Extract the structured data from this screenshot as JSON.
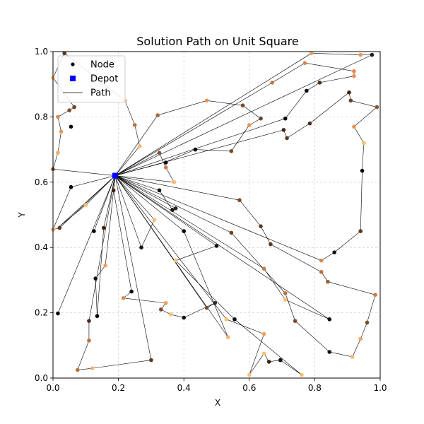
{
  "chart_data": {
    "type": "scatter",
    "title": "Solution Path on Unit Square",
    "xlabel": "X",
    "ylabel": "Y",
    "xlim": [
      0,
      1
    ],
    "ylim": [
      0,
      1
    ],
    "xticks": [
      "0.0",
      "0.2",
      "0.4",
      "0.6",
      "0.8",
      "1.0"
    ],
    "yticks": [
      "0.0",
      "0.2",
      "0.4",
      "0.6",
      "0.8",
      "1.0"
    ],
    "grid": true,
    "legend": {
      "placement": "top-left",
      "entries": [
        {
          "label": "Node",
          "marker": "circle",
          "color": "#000000"
        },
        {
          "label": "Depot",
          "marker": "square",
          "color": "#0000ff"
        },
        {
          "label": "Path",
          "marker": "line",
          "color": "#000000"
        }
      ]
    },
    "depot": {
      "x": 0.19,
      "y": 0.62,
      "color": "#0000ff"
    },
    "routes": [
      [
        [
          0.19,
          0.62
        ],
        [
          0.0,
          0.64
        ],
        [
          0.015,
          0.69
        ],
        [
          0.025,
          0.755
        ],
        [
          0.015,
          0.8
        ],
        [
          0.05,
          0.82
        ],
        [
          0.065,
          0.83
        ],
        [
          0.0,
          0.92
        ],
        [
          0.035,
          0.995
        ],
        [
          0.22,
          0.85
        ],
        [
          0.25,
          0.775
        ],
        [
          0.265,
          0.71
        ],
        [
          0.19,
          0.62
        ]
      ],
      [
        [
          0.19,
          0.62
        ],
        [
          0.32,
          0.805
        ],
        [
          0.47,
          0.85
        ],
        [
          0.58,
          0.835
        ],
        [
          0.635,
          0.795
        ],
        [
          0.6,
          0.775
        ],
        [
          0.545,
          0.695
        ],
        [
          0.435,
          0.7
        ],
        [
          0.34,
          0.66
        ],
        [
          0.19,
          0.62
        ]
      ],
      [
        [
          0.19,
          0.62
        ],
        [
          0.71,
          0.795
        ],
        [
          0.775,
          0.88
        ],
        [
          0.815,
          0.905
        ],
        [
          0.92,
          0.925
        ],
        [
          0.92,
          0.94
        ],
        [
          0.77,
          0.965
        ],
        [
          0.67,
          0.905
        ],
        [
          0.19,
          0.62
        ]
      ],
      [
        [
          0.19,
          0.62
        ],
        [
          0.79,
          0.995
        ],
        [
          0.94,
          0.99
        ],
        [
          0.975,
          0.99
        ],
        [
          0.19,
          0.62
        ]
      ],
      [
        [
          0.19,
          0.62
        ],
        [
          0.705,
          0.76
        ],
        [
          0.715,
          0.735
        ],
        [
          0.785,
          0.78
        ],
        [
          0.905,
          0.875
        ],
        [
          0.91,
          0.85
        ],
        [
          0.99,
          0.83
        ],
        [
          0.92,
          0.77
        ],
        [
          0.95,
          0.72
        ],
        [
          0.945,
          0.635
        ],
        [
          0.94,
          0.45
        ],
        [
          0.86,
          0.385
        ],
        [
          0.82,
          0.36
        ],
        [
          0.19,
          0.62
        ]
      ],
      [
        [
          0.19,
          0.62
        ],
        [
          0.325,
          0.69
        ],
        [
          0.345,
          0.645
        ],
        [
          0.37,
          0.6
        ],
        [
          0.19,
          0.62
        ]
      ],
      [
        [
          0.19,
          0.62
        ],
        [
          0.57,
          0.545
        ],
        [
          0.635,
          0.465
        ],
        [
          0.665,
          0.41
        ],
        [
          0.82,
          0.325
        ],
        [
          0.84,
          0.295
        ],
        [
          0.985,
          0.255
        ],
        [
          0.96,
          0.17
        ],
        [
          0.94,
          0.12
        ],
        [
          0.915,
          0.065
        ],
        [
          0.845,
          0.08
        ],
        [
          0.74,
          0.175
        ],
        [
          0.71,
          0.26
        ],
        [
          0.545,
          0.445
        ],
        [
          0.19,
          0.62
        ]
      ],
      [
        [
          0.19,
          0.62
        ],
        [
          0.325,
          0.575
        ],
        [
          0.365,
          0.515
        ],
        [
          0.375,
          0.52
        ],
        [
          0.19,
          0.62
        ]
      ],
      [
        [
          0.19,
          0.62
        ],
        [
          0.845,
          0.18
        ],
        [
          0.71,
          0.24
        ],
        [
          0.645,
          0.335
        ],
        [
          0.19,
          0.62
        ]
      ],
      [
        [
          0.19,
          0.62
        ],
        [
          0.53,
          0.18
        ],
        [
          0.645,
          0.135
        ],
        [
          0.6,
          0.01
        ],
        [
          0.645,
          0.075
        ],
        [
          0.66,
          0.05
        ],
        [
          0.695,
          0.055
        ],
        [
          0.76,
          0.01
        ],
        [
          0.555,
          0.18
        ],
        [
          0.375,
          0.36
        ],
        [
          0.5,
          0.405
        ],
        [
          0.19,
          0.62
        ]
      ],
      [
        [
          0.19,
          0.62
        ],
        [
          0.535,
          0.125
        ],
        [
          0.4,
          0.45
        ],
        [
          0.19,
          0.62
        ]
      ],
      [
        [
          0.19,
          0.62
        ],
        [
          0.27,
          0.4
        ],
        [
          0.31,
          0.485
        ],
        [
          0.19,
          0.62
        ]
      ],
      [
        [
          0.19,
          0.62
        ],
        [
          0.02,
          0.46
        ],
        [
          0.0,
          0.455
        ],
        [
          0.055,
          0.585
        ],
        [
          0.19,
          0.62
        ]
      ],
      [
        [
          0.19,
          0.62
        ],
        [
          0.1,
          0.53
        ],
        [
          0.02,
          0.465
        ],
        [
          0.19,
          0.62
        ]
      ],
      [
        [
          0.19,
          0.62
        ],
        [
          0.125,
          0.45
        ],
        [
          0.19,
          0.62
        ]
      ],
      [
        [
          0.19,
          0.62
        ],
        [
          0.185,
          0.575
        ],
        [
          0.24,
          0.265
        ],
        [
          0.215,
          0.245
        ],
        [
          0.345,
          0.23
        ],
        [
          0.33,
          0.21
        ],
        [
          0.36,
          0.195
        ],
        [
          0.4,
          0.185
        ],
        [
          0.495,
          0.23
        ],
        [
          0.47,
          0.215
        ],
        [
          0.19,
          0.62
        ]
      ],
      [
        [
          0.19,
          0.62
        ],
        [
          0.155,
          0.46
        ],
        [
          0.135,
          0.19
        ],
        [
          0.13,
          0.305
        ],
        [
          0.16,
          0.345
        ],
        [
          0.19,
          0.62
        ]
      ],
      [
        [
          0.19,
          0.62
        ],
        [
          0.015,
          0.198
        ],
        [
          0.19,
          0.62
        ]
      ],
      [
        [
          0.19,
          0.62
        ],
        [
          0.11,
          0.175
        ],
        [
          0.11,
          0.115
        ],
        [
          0.075,
          0.025
        ],
        [
          0.12,
          0.03
        ],
        [
          0.3,
          0.055
        ],
        [
          0.19,
          0.62
        ]
      ]
    ],
    "nodes": [
      {
        "x": 0.035,
        "y": 0.995,
        "color": "#5a3a20"
      },
      {
        "x": 0.0,
        "y": 0.92,
        "color": "#f2b46e"
      },
      {
        "x": 0.065,
        "y": 0.83,
        "color": "#6e4526"
      },
      {
        "x": 0.05,
        "y": 0.82,
        "color": "#7a4c2a"
      },
      {
        "x": 0.015,
        "y": 0.8,
        "color": "#d9864e"
      },
      {
        "x": 0.025,
        "y": 0.755,
        "color": "#e8955a"
      },
      {
        "x": 0.055,
        "y": 0.77,
        "color": "#0d0806"
      },
      {
        "x": 0.015,
        "y": 0.69,
        "color": "#f5a868"
      },
      {
        "x": 0.0,
        "y": 0.64,
        "color": "#8a5530"
      },
      {
        "x": 0.22,
        "y": 0.85,
        "color": "#f5b470"
      },
      {
        "x": 0.25,
        "y": 0.775,
        "color": "#b8703e"
      },
      {
        "x": 0.265,
        "y": 0.71,
        "color": "#f7b86e"
      },
      {
        "x": 0.32,
        "y": 0.805,
        "color": "#a8683a"
      },
      {
        "x": 0.47,
        "y": 0.85,
        "color": "#e8925a"
      },
      {
        "x": 0.58,
        "y": 0.835,
        "color": "#7a4a28"
      },
      {
        "x": 0.635,
        "y": 0.795,
        "color": "#6b4226"
      },
      {
        "x": 0.6,
        "y": 0.775,
        "color": "#e8955a"
      },
      {
        "x": 0.545,
        "y": 0.695,
        "color": "#7a4a28"
      },
      {
        "x": 0.435,
        "y": 0.7,
        "color": "#0a0604"
      },
      {
        "x": 0.325,
        "y": 0.69,
        "color": "#8a5530"
      },
      {
        "x": 0.345,
        "y": 0.66,
        "color": "#0a0604"
      },
      {
        "x": 0.345,
        "y": 0.645,
        "color": "#c8794a"
      },
      {
        "x": 0.37,
        "y": 0.6,
        "color": "#fab870"
      },
      {
        "x": 0.71,
        "y": 0.795,
        "color": "#100a06"
      },
      {
        "x": 0.775,
        "y": 0.88,
        "color": "#100a06"
      },
      {
        "x": 0.815,
        "y": 0.905,
        "color": "#4a2e1a"
      },
      {
        "x": 0.92,
        "y": 0.925,
        "color": "#e8925a"
      },
      {
        "x": 0.92,
        "y": 0.94,
        "color": "#e08a52"
      },
      {
        "x": 0.77,
        "y": 0.965,
        "color": "#d8864e"
      },
      {
        "x": 0.67,
        "y": 0.905,
        "color": "#c27a44"
      },
      {
        "x": 0.79,
        "y": 0.995,
        "color": "#f0a060"
      },
      {
        "x": 0.94,
        "y": 0.99,
        "color": "#e8955a"
      },
      {
        "x": 0.975,
        "y": 0.99,
        "color": "#2a1a0e"
      },
      {
        "x": 0.705,
        "y": 0.76,
        "color": "#3a2414"
      },
      {
        "x": 0.715,
        "y": 0.735,
        "color": "#5a3820"
      },
      {
        "x": 0.785,
        "y": 0.78,
        "color": "#4a2e1a"
      },
      {
        "x": 0.905,
        "y": 0.875,
        "color": "#3a2414"
      },
      {
        "x": 0.91,
        "y": 0.85,
        "color": "#6b4226"
      },
      {
        "x": 0.99,
        "y": 0.83,
        "color": "#8a5530"
      },
      {
        "x": 0.92,
        "y": 0.77,
        "color": "#e8955a"
      },
      {
        "x": 0.95,
        "y": 0.72,
        "color": "#fac070"
      },
      {
        "x": 0.945,
        "y": 0.635,
        "color": "#0a0604"
      },
      {
        "x": 0.94,
        "y": 0.45,
        "color": "#5a3820"
      },
      {
        "x": 0.86,
        "y": 0.385,
        "color": "#1a100a"
      },
      {
        "x": 0.82,
        "y": 0.36,
        "color": "#d8864e"
      },
      {
        "x": 0.57,
        "y": 0.545,
        "color": "#7a4a28"
      },
      {
        "x": 0.635,
        "y": 0.465,
        "color": "#5a3820"
      },
      {
        "x": 0.665,
        "y": 0.41,
        "color": "#5a3820"
      },
      {
        "x": 0.82,
        "y": 0.325,
        "color": "#b8703e"
      },
      {
        "x": 0.84,
        "y": 0.295,
        "color": "#9a5f34"
      },
      {
        "x": 0.985,
        "y": 0.255,
        "color": "#c8794a"
      },
      {
        "x": 0.96,
        "y": 0.17,
        "color": "#7a4a28"
      },
      {
        "x": 0.94,
        "y": 0.12,
        "color": "#f0a060"
      },
      {
        "x": 0.915,
        "y": 0.065,
        "color": "#fab870"
      },
      {
        "x": 0.845,
        "y": 0.08,
        "color": "#1a100a"
      },
      {
        "x": 0.845,
        "y": 0.18,
        "color": "#0a0604"
      },
      {
        "x": 0.74,
        "y": 0.175,
        "color": "#7a4a28"
      },
      {
        "x": 0.71,
        "y": 0.26,
        "color": "#b8703e"
      },
      {
        "x": 0.71,
        "y": 0.24,
        "color": "#fac070"
      },
      {
        "x": 0.645,
        "y": 0.335,
        "color": "#c8794a"
      },
      {
        "x": 0.545,
        "y": 0.445,
        "color": "#6b4226"
      },
      {
        "x": 0.325,
        "y": 0.575,
        "color": "#1a100a"
      },
      {
        "x": 0.365,
        "y": 0.515,
        "color": "#1a100a"
      },
      {
        "x": 0.375,
        "y": 0.52,
        "color": "#3a2414"
      },
      {
        "x": 0.53,
        "y": 0.18,
        "color": "#fac070"
      },
      {
        "x": 0.555,
        "y": 0.18,
        "color": "#0a0604"
      },
      {
        "x": 0.645,
        "y": 0.135,
        "color": "#f0a060"
      },
      {
        "x": 0.6,
        "y": 0.01,
        "color": "#fac070"
      },
      {
        "x": 0.645,
        "y": 0.075,
        "color": "#fac070"
      },
      {
        "x": 0.66,
        "y": 0.05,
        "color": "#3a2414"
      },
      {
        "x": 0.695,
        "y": 0.055,
        "color": "#1a100a"
      },
      {
        "x": 0.76,
        "y": 0.01,
        "color": "#fac070"
      },
      {
        "x": 0.375,
        "y": 0.36,
        "color": "#fac070"
      },
      {
        "x": 0.5,
        "y": 0.405,
        "color": "#1a100a"
      },
      {
        "x": 0.535,
        "y": 0.125,
        "color": "#f5b470"
      },
      {
        "x": 0.4,
        "y": 0.45,
        "color": "#0a0604"
      },
      {
        "x": 0.27,
        "y": 0.4,
        "color": "#1a100a"
      },
      {
        "x": 0.31,
        "y": 0.485,
        "color": "#fac070"
      },
      {
        "x": 0.02,
        "y": 0.46,
        "color": "#5a3820"
      },
      {
        "x": 0.0,
        "y": 0.455,
        "color": "#f0a060"
      },
      {
        "x": 0.055,
        "y": 0.585,
        "color": "#0a0604"
      },
      {
        "x": 0.1,
        "y": 0.53,
        "color": "#fac070"
      },
      {
        "x": 0.125,
        "y": 0.45,
        "color": "#0a0604"
      },
      {
        "x": 0.185,
        "y": 0.575,
        "color": "#3a2414"
      },
      {
        "x": 0.24,
        "y": 0.265,
        "color": "#0a0604"
      },
      {
        "x": 0.215,
        "y": 0.245,
        "color": "#e08a52"
      },
      {
        "x": 0.345,
        "y": 0.23,
        "color": "#f0a060"
      },
      {
        "x": 0.33,
        "y": 0.21,
        "color": "#7a4a28"
      },
      {
        "x": 0.36,
        "y": 0.195,
        "color": "#fac070"
      },
      {
        "x": 0.4,
        "y": 0.185,
        "color": "#1a100a"
      },
      {
        "x": 0.495,
        "y": 0.23,
        "color": "#3a2414"
      },
      {
        "x": 0.47,
        "y": 0.215,
        "color": "#7a4a28"
      },
      {
        "x": 0.155,
        "y": 0.46,
        "color": "#3a2414"
      },
      {
        "x": 0.135,
        "y": 0.19,
        "color": "#0a0604"
      },
      {
        "x": 0.13,
        "y": 0.305,
        "color": "#1a100a"
      },
      {
        "x": 0.16,
        "y": 0.345,
        "color": "#f0a060"
      },
      {
        "x": 0.015,
        "y": 0.198,
        "color": "#0a0604"
      },
      {
        "x": 0.11,
        "y": 0.175,
        "color": "#4a2e1a"
      },
      {
        "x": 0.11,
        "y": 0.115,
        "color": "#b8703e"
      },
      {
        "x": 0.075,
        "y": 0.025,
        "color": "#b8703e"
      },
      {
        "x": 0.12,
        "y": 0.03,
        "color": "#f5b470"
      },
      {
        "x": 0.3,
        "y": 0.055,
        "color": "#5a3820"
      }
    ]
  }
}
